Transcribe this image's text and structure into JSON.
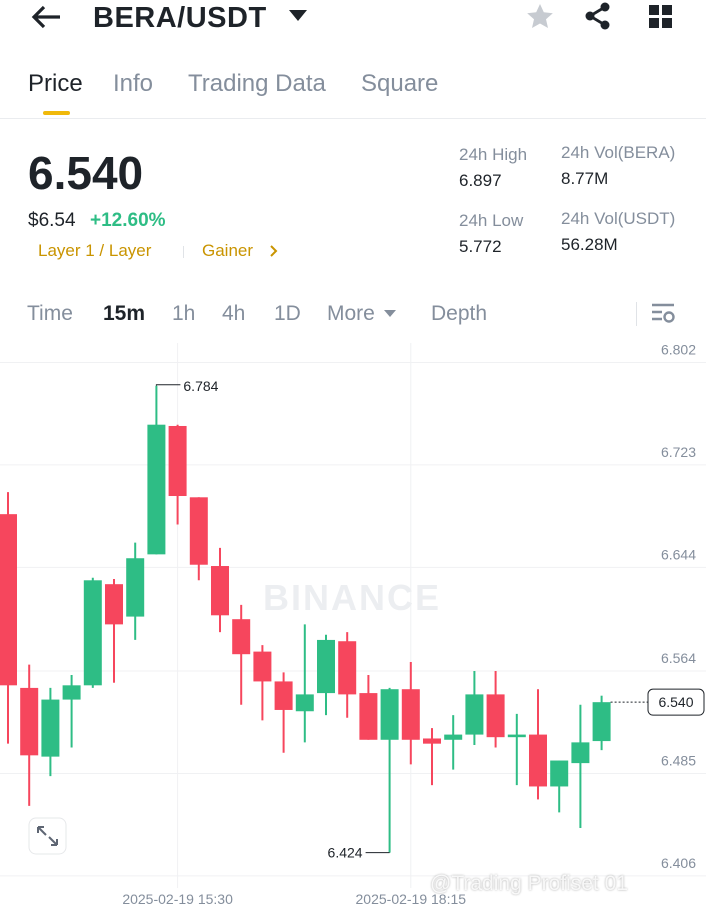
{
  "header": {
    "pair": "BERA/USDT"
  },
  "tabs": [
    "Price",
    "Info",
    "Trading Data",
    "Square"
  ],
  "ticker": {
    "price": "6.540",
    "price_usd": "$6.54",
    "change": "+12.60%",
    "tags": [
      "Layer 1 / Layer",
      "Gainer"
    ],
    "stats": [
      {
        "label": "24h High",
        "value": "6.897"
      },
      {
        "label": "24h Vol(BERA)",
        "value": "8.77M"
      },
      {
        "label": "24h Low",
        "value": "5.772"
      },
      {
        "label": "24h Vol(USDT)",
        "value": "56.28M"
      }
    ]
  },
  "chart_tabs": [
    "Time",
    "15m",
    "1h",
    "4h",
    "1D",
    "More",
    "Depth"
  ],
  "chart_data": {
    "type": "candlestick",
    "watermark": "BINANCE",
    "open": [
      6.685,
      6.551,
      6.498,
      6.542,
      6.553,
      6.631,
      6.606,
      6.654,
      6.753,
      6.698,
      6.645,
      6.604,
      6.579,
      6.556,
      6.533,
      6.547,
      6.587,
      6.547,
      6.511,
      6.55,
      6.512,
      6.511,
      6.515,
      6.546,
      6.513,
      6.515,
      6.475,
      6.493,
      6.51
    ],
    "high": [
      6.702,
      6.569,
      6.551,
      6.561,
      6.636,
      6.635,
      6.663,
      6.784,
      6.754,
      6.698,
      6.659,
      6.615,
      6.584,
      6.563,
      6.6,
      6.592,
      6.594,
      6.561,
      6.551,
      6.571,
      6.52,
      6.53,
      6.564,
      6.564,
      6.531,
      6.55,
      6.495,
      6.538,
      6.545
    ],
    "low": [
      6.508,
      6.46,
      6.483,
      6.505,
      6.551,
      6.555,
      6.588,
      6.654,
      6.677,
      6.634,
      6.594,
      6.538,
      6.526,
      6.501,
      6.509,
      6.53,
      6.528,
      6.511,
      6.424,
      6.492,
      6.476,
      6.488,
      6.507,
      6.505,
      6.476,
      6.465,
      6.455,
      6.443,
      6.503
    ],
    "close": [
      6.553,
      6.499,
      6.542,
      6.553,
      6.634,
      6.6,
      6.651,
      6.754,
      6.699,
      6.646,
      6.607,
      6.577,
      6.556,
      6.534,
      6.546,
      6.588,
      6.546,
      6.511,
      6.55,
      6.511,
      6.508,
      6.515,
      6.546,
      6.513,
      6.515,
      6.475,
      6.495,
      6.509,
      6.54
    ],
    "up_color": "#2ebd85",
    "down_color": "#f6465d",
    "ylim": [
      6.399,
      6.817
    ],
    "yticks": [
      6.802,
      6.723,
      6.644,
      6.564,
      6.485,
      6.406
    ],
    "xticks": [
      {
        "value": 8,
        "label": "2025-02-19 15:30"
      },
      {
        "value": 19,
        "label": "2025-02-19 18:15"
      }
    ],
    "last_price_label": "6.540",
    "grid": true
  },
  "watermark": "@Trading Profiset 01"
}
